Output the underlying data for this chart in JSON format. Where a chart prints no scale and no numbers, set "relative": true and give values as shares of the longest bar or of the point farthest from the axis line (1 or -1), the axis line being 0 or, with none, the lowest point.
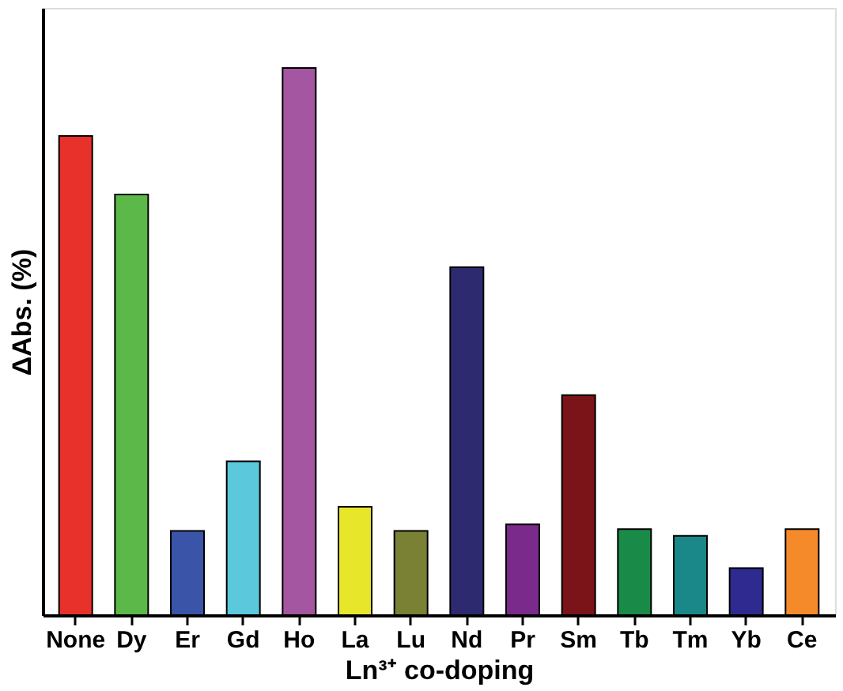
{
  "chart_data": {
    "type": "bar",
    "relative": true,
    "xlabel": "Ln³⁺ co-doping",
    "ylabel": "ΔAbs. (%)",
    "categories": [
      "None",
      "Dy",
      "Er",
      "Gd",
      "Ho",
      "La",
      "Lu",
      "Nd",
      "Pr",
      "Sm",
      "Tb",
      "Tm",
      "Yb",
      "Ce"
    ],
    "values": [
      0.876,
      0.769,
      0.154,
      0.281,
      1,
      0.198,
      0.154,
      0.636,
      0.166,
      0.402,
      0.157,
      0.145,
      0.086,
      0.157
    ],
    "colors": [
      "#e8312a",
      "#5cb848",
      "#3a55a8",
      "#5bc8dc",
      "#a556a0",
      "#e8e62a",
      "#7a8034",
      "#2e2a70",
      "#7a2a8a",
      "#7a1418",
      "#1a8a48",
      "#1a8888",
      "#2e2a90",
      "#f58a2a"
    ],
    "grid": false
  }
}
